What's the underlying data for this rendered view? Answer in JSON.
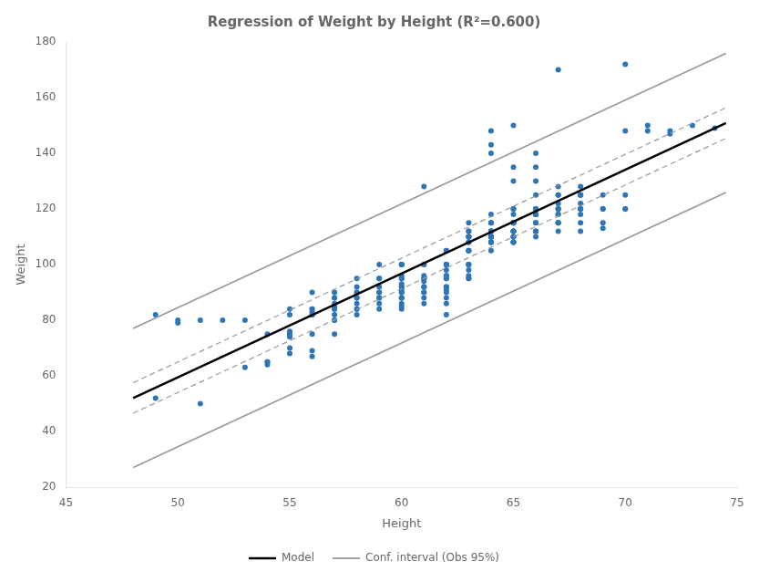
{
  "chart_data": {
    "type": "scatter",
    "title": "Regression of Weight by Height (R²=0.600)",
    "xlabel": "Height",
    "ylabel": "Weight",
    "xlim": [
      45,
      75
    ],
    "ylim": [
      20,
      180
    ],
    "xticks": [
      45,
      50,
      55,
      60,
      65,
      70,
      75
    ],
    "yticks": [
      20,
      40,
      60,
      80,
      100,
      120,
      140,
      160,
      180
    ],
    "grid": false,
    "legend": "bottom",
    "series": [
      {
        "type": "scatter",
        "color": "#2e75b6",
        "marker": "circle",
        "x": [
          49,
          49,
          50,
          50,
          51,
          51,
          52,
          53,
          53,
          54,
          54,
          54,
          54,
          55,
          55,
          55,
          55,
          55,
          55,
          55,
          55,
          56,
          56,
          56,
          56,
          56,
          56,
          56,
          56,
          56,
          57,
          57,
          57,
          57,
          57,
          57,
          57,
          57,
          57,
          57,
          57,
          58,
          58,
          58,
          58,
          58,
          58,
          58,
          58,
          58,
          58,
          59,
          59,
          59,
          59,
          59,
          59,
          59,
          59,
          59,
          59,
          60,
          60,
          60,
          60,
          60,
          60,
          60,
          60,
          60,
          60,
          60,
          60,
          60,
          60,
          60,
          60,
          60,
          60,
          61,
          61,
          61,
          61,
          61,
          61,
          61,
          61,
          61,
          61,
          61,
          61,
          61,
          61,
          62,
          62,
          62,
          62,
          62,
          62,
          62,
          62,
          62,
          62,
          62,
          62,
          62,
          62,
          62,
          62,
          62,
          62,
          63,
          63,
          63,
          63,
          63,
          63,
          63,
          63,
          63,
          63,
          63,
          63,
          63,
          63,
          63,
          63,
          63,
          63,
          63,
          63,
          64,
          64,
          64,
          64,
          64,
          64,
          64,
          64,
          64,
          64,
          64,
          64,
          64,
          64,
          64,
          64,
          64,
          64,
          64,
          64,
          64,
          64,
          65,
          65,
          65,
          65,
          65,
          65,
          65,
          65,
          65,
          65,
          65,
          65,
          65,
          65,
          65,
          65,
          65,
          65,
          65,
          65,
          65,
          65,
          66,
          66,
          66,
          66,
          66,
          66,
          66,
          66,
          66,
          66,
          66,
          66,
          66,
          66,
          66,
          66,
          66,
          67,
          67,
          67,
          67,
          67,
          67,
          67,
          67,
          67,
          67,
          67,
          67,
          67,
          67,
          68,
          68,
          68,
          68,
          68,
          68,
          68,
          68,
          68,
          68,
          68,
          69,
          69,
          69,
          69,
          69,
          70,
          70,
          70,
          70,
          70,
          71,
          71,
          72,
          72,
          73,
          74
        ],
        "values": [
          82,
          52,
          80,
          79,
          50,
          80,
          80,
          63,
          80,
          75,
          65,
          65,
          64,
          74,
          75,
          84,
          68,
          82,
          70,
          76,
          75,
          82,
          84,
          83,
          90,
          84,
          82,
          75,
          69,
          67,
          75,
          82,
          90,
          88,
          86,
          84,
          80,
          85,
          88,
          84,
          80,
          88,
          92,
          90,
          82,
          84,
          95,
          86,
          90,
          88,
          84,
          95,
          90,
          100,
          92,
          88,
          86,
          84,
          95,
          90,
          88,
          95,
          100,
          90,
          88,
          92,
          84,
          95,
          86,
          90,
          92,
          100,
          88,
          85,
          96,
          93,
          91,
          88,
          100,
          100,
          95,
          90,
          86,
          92,
          94,
          100,
          92,
          88,
          96,
          90,
          128,
          95,
          92,
          100,
          96,
          105,
          95,
          92,
          86,
          98,
          90,
          100,
          82,
          96,
          100,
          92,
          88,
          105,
          95,
          100,
          91,
          105,
          100,
          110,
          108,
          95,
          98,
          105,
          112,
          110,
          108,
          100,
          115,
          110,
          100,
          96,
          95,
          110,
          108,
          105,
          112,
          110,
          108,
          112,
          110,
          115,
          110,
          108,
          112,
          115,
          110,
          105,
          108,
          112,
          118,
          110,
          112,
          110,
          140,
          143,
          148,
          115,
          108,
          115,
          110,
          108,
          112,
          118,
          115,
          120,
          108,
          112,
          115,
          110,
          108,
          115,
          112,
          150,
          135,
          130,
          120,
          110,
          115,
          112,
          108,
          118,
          120,
          115,
          112,
          118,
          125,
          120,
          115,
          110,
          118,
          120,
          112,
          135,
          140,
          130,
          118,
          112,
          120,
          125,
          118,
          115,
          125,
          120,
          115,
          128,
          120,
          115,
          170,
          112,
          122,
          118,
          125,
          120,
          118,
          128,
          125,
          120,
          115,
          125,
          120,
          112,
          122,
          125,
          120,
          115,
          120,
          113,
          120,
          125,
          148,
          172,
          120,
          148,
          150,
          148,
          147,
          150,
          149
        ]
      },
      {
        "name": "Model",
        "type": "line",
        "color": "#000000",
        "line_style": "solid",
        "x": [
          48,
          74.5
        ],
        "values": [
          52.04,
          150.885
        ]
      },
      {
        "type": "line",
        "color": "#999999",
        "line_style": "dashed",
        "x": [
          48,
          74.5
        ],
        "upper": [
          57.54,
          156.385
        ],
        "lower": [
          46.54,
          145.385
        ]
      },
      {
        "name": "Conf. interval (Obs 95%)",
        "type": "line",
        "color": "#999999",
        "line_style": "solid",
        "x": [
          48,
          74.5
        ],
        "upper": [
          77.04,
          175.885
        ],
        "lower": [
          27.04,
          125.885
        ]
      }
    ]
  }
}
